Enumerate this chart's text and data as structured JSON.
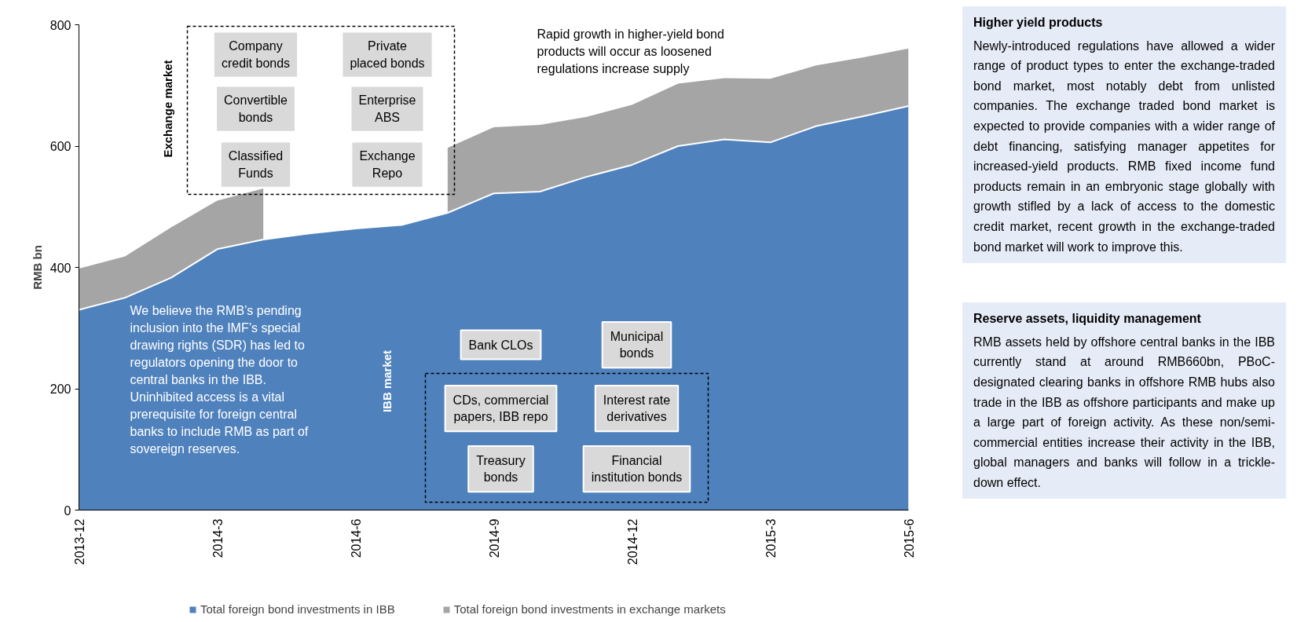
{
  "chart_data": {
    "type": "area",
    "stacked": true,
    "categories": [
      "2013-12",
      null,
      null,
      "2014-3",
      null,
      null,
      "2014-6",
      null,
      null,
      "2014-9",
      null,
      null,
      "2014-12",
      null,
      null,
      "2015-3",
      null,
      null,
      "2015-6"
    ],
    "series": [
      {
        "name": "Total foreign bond investments in IBB",
        "color": "#4f81bd",
        "values": [
          330,
          350,
          383,
          430,
          446,
          456,
          464,
          470,
          490,
          522,
          525,
          549,
          569,
          600,
          611,
          606,
          633,
          649,
          666
        ]
      },
      {
        "name": "Total foreign bond investments in exchange markets",
        "color": "#a5a5a5",
        "values": [
          68,
          68,
          83,
          80,
          84,
          null,
          null,
          null,
          107,
          109,
          110,
          99,
          99,
          103,
          101,
          105,
          100,
          97,
          95
        ]
      }
    ],
    "ylim": [
      0,
      800
    ],
    "yticks": [
      0,
      200,
      400,
      600,
      800
    ],
    "ylabel": "RMB bn",
    "legend": "bottom",
    "annotations": [
      "Rapid growth in higher-yield bond products will occur as loosened regulations increase supply",
      "We believe the RMB’s pending inclusion into the IMF’s special drawing rights (SDR) has led to regulators opening the door to central banks in the IBB. Uninhibited access is a vital prerequisite for foreign central banks to include RMB as part of sovereign reserves.",
      "Exchange market",
      "Company credit bonds",
      "Private placed bonds",
      "Convertible bonds",
      "Enterprise ABS",
      "Classified Funds",
      "Exchange Repo",
      "IBB market",
      "Bank CLOs",
      "Municipal bonds",
      "CDs, commercial papers, IBB repo",
      "Interest rate derivatives",
      "Treasury bonds",
      "Financial institution bonds",
      "Higher yield products",
      "Newly-introduced regulations have allowed a wider range of product types to enter the exchange-traded bond market, most notably debt from unlisted companies. The exchange traded bond market is expected to provide companies with a wider range of debt financing, satisfying manager appetites for increased-yield products. RMB fixed income fund products remain in an embryonic stage globally with growth stifled by a lack of access to the domestic credit market, recent growth in the exchange-traded bond market will work to improve this.",
      "Reserve assets, liquidity management",
      "RMB assets held by offshore central banks in the IBB currently stand at around RMB660bn, PBoC-designated clearing banks in offshore RMB hubs also trade in the IBB as offshore participants and make up a large part of foreign activity. As these non/semi-commercial entities increase their activity in the IBB, global managers and banks will follow in a trickle-down effect."
    ]
  }
}
